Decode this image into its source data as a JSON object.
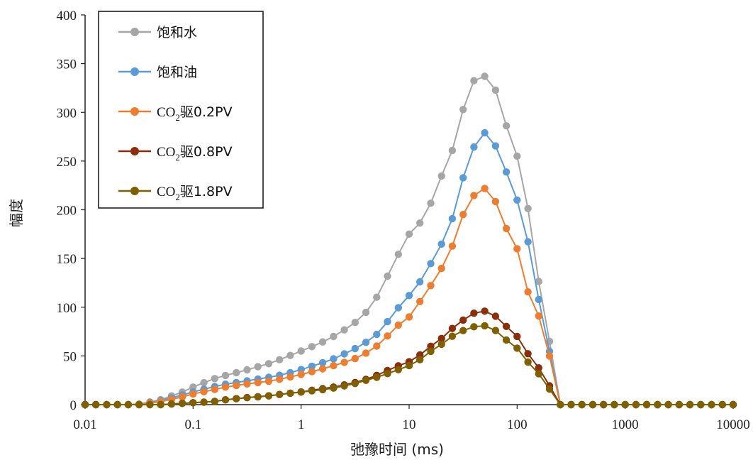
{
  "chart_data": {
    "type": "line",
    "xscale": "log",
    "xlim": [
      0.01,
      10000
    ],
    "ylim": [
      0,
      400
    ],
    "xlabel": "弛豫时间 (ms)",
    "ylabel": "幅度",
    "x_ticks": [
      "0.01",
      "0.1",
      "1",
      "10",
      "100",
      "1000",
      "10000"
    ],
    "y_ticks": [
      "0",
      "50",
      "100",
      "150",
      "200",
      "250",
      "300",
      "350",
      "400"
    ],
    "grid": false,
    "legend_position": "top-left",
    "points_per_decade": 10,
    "series": [
      {
        "name": "饱和水",
        "legend_main": "饱和水",
        "legend_sub": "",
        "legend_tail": "",
        "color": "#a6a6a6",
        "points": [
          [
            0.01,
            0
          ],
          [
            0.03,
            0
          ],
          [
            0.05,
            5
          ],
          [
            0.08,
            13
          ],
          [
            0.1,
            18
          ],
          [
            0.15,
            26
          ],
          [
            0.2,
            30
          ],
          [
            0.3,
            35
          ],
          [
            0.5,
            42
          ],
          [
            0.7,
            48
          ],
          [
            1,
            55
          ],
          [
            1.5,
            63
          ],
          [
            2,
            70
          ],
          [
            3,
            82
          ],
          [
            4,
            95
          ],
          [
            5,
            110
          ],
          [
            6,
            127
          ],
          [
            8,
            155
          ],
          [
            10,
            175
          ],
          [
            13,
            188
          ],
          [
            15,
            200
          ],
          [
            20,
            235
          ],
          [
            25,
            260
          ],
          [
            30,
            295
          ],
          [
            35,
            318
          ],
          [
            40,
            333
          ],
          [
            50,
            337
          ],
          [
            55,
            335
          ],
          [
            60,
            330
          ],
          [
            70,
            308
          ],
          [
            80,
            285
          ],
          [
            100,
            255
          ],
          [
            120,
            218
          ],
          [
            150,
            140
          ],
          [
            180,
            95
          ],
          [
            210,
            50
          ],
          [
            250,
            0
          ],
          [
            10000,
            0
          ]
        ]
      },
      {
        "name": "饱和油",
        "legend_main": "饱和油",
        "legend_sub": "",
        "legend_tail": "",
        "color": "#5b9bd5",
        "points": [
          [
            0.01,
            0
          ],
          [
            0.03,
            0
          ],
          [
            0.05,
            4
          ],
          [
            0.08,
            10
          ],
          [
            0.1,
            13
          ],
          [
            0.15,
            18
          ],
          [
            0.2,
            21
          ],
          [
            0.3,
            24
          ],
          [
            0.5,
            28
          ],
          [
            0.7,
            31
          ],
          [
            1,
            36
          ],
          [
            1.5,
            42
          ],
          [
            2,
            47
          ],
          [
            3,
            56
          ],
          [
            4,
            64
          ],
          [
            5,
            72
          ],
          [
            6,
            82
          ],
          [
            8,
            100
          ],
          [
            10,
            112
          ],
          [
            13,
            128
          ],
          [
            15,
            140
          ],
          [
            20,
            165
          ],
          [
            25,
            190
          ],
          [
            30,
            225
          ],
          [
            35,
            248
          ],
          [
            40,
            265
          ],
          [
            50,
            279
          ],
          [
            55,
            278
          ],
          [
            60,
            272
          ],
          [
            70,
            252
          ],
          [
            80,
            238
          ],
          [
            100,
            210
          ],
          [
            120,
            180
          ],
          [
            150,
            120
          ],
          [
            180,
            80
          ],
          [
            210,
            42
          ],
          [
            250,
            0
          ],
          [
            10000,
            0
          ]
        ]
      },
      {
        "name": "CO2驱0.2PV",
        "legend_main": "CO",
        "legend_sub": "2",
        "legend_tail": "驱0.2PV",
        "color": "#ed7d31",
        "points": [
          [
            0.01,
            0
          ],
          [
            0.03,
            0
          ],
          [
            0.05,
            3
          ],
          [
            0.08,
            8
          ],
          [
            0.1,
            11
          ],
          [
            0.15,
            15
          ],
          [
            0.2,
            18
          ],
          [
            0.3,
            21
          ],
          [
            0.5,
            24
          ],
          [
            0.7,
            27
          ],
          [
            1,
            31
          ],
          [
            1.5,
            36
          ],
          [
            2,
            40
          ],
          [
            3,
            46
          ],
          [
            4,
            53
          ],
          [
            5,
            60
          ],
          [
            6,
            68
          ],
          [
            8,
            82
          ],
          [
            10,
            90
          ],
          [
            13,
            108
          ],
          [
            15,
            118
          ],
          [
            20,
            140
          ],
          [
            25,
            162
          ],
          [
            30,
            190
          ],
          [
            35,
            205
          ],
          [
            40,
            215
          ],
          [
            50,
            222
          ],
          [
            55,
            220
          ],
          [
            60,
            215
          ],
          [
            70,
            195
          ],
          [
            80,
            180
          ],
          [
            100,
            160
          ],
          [
            120,
            120
          ],
          [
            150,
            100
          ],
          [
            180,
            70
          ],
          [
            210,
            40
          ],
          [
            250,
            0
          ],
          [
            10000,
            0
          ]
        ]
      },
      {
        "name": "CO2驱0.8PV",
        "legend_main": "CO",
        "legend_sub": "2",
        "legend_tail": "驱0.8PV",
        "color": "#8b2e0b",
        "points": [
          [
            0.01,
            0
          ],
          [
            0.05,
            0
          ],
          [
            0.1,
            2
          ],
          [
            0.15,
            3
          ],
          [
            0.2,
            5
          ],
          [
            0.3,
            7
          ],
          [
            0.5,
            9
          ],
          [
            0.7,
            11
          ],
          [
            1,
            13
          ],
          [
            1.5,
            16
          ],
          [
            2,
            18
          ],
          [
            3,
            22
          ],
          [
            4,
            26
          ],
          [
            5,
            30
          ],
          [
            6,
            34
          ],
          [
            8,
            40
          ],
          [
            10,
            44
          ],
          [
            13,
            52
          ],
          [
            15,
            58
          ],
          [
            20,
            68
          ],
          [
            25,
            78
          ],
          [
            30,
            85
          ],
          [
            35,
            90
          ],
          [
            40,
            94
          ],
          [
            50,
            96
          ],
          [
            55,
            95
          ],
          [
            60,
            93
          ],
          [
            70,
            86
          ],
          [
            80,
            80
          ],
          [
            100,
            70
          ],
          [
            120,
            55
          ],
          [
            150,
            42
          ],
          [
            180,
            28
          ],
          [
            210,
            15
          ],
          [
            250,
            0
          ],
          [
            10000,
            0
          ]
        ]
      },
      {
        "name": "CO2驱1.8PV",
        "legend_main": "CO",
        "legend_sub": "2",
        "legend_tail": "驱1.8PV",
        "color": "#7f6000",
        "points": [
          [
            0.01,
            0
          ],
          [
            0.05,
            0
          ],
          [
            0.1,
            2
          ],
          [
            0.15,
            3
          ],
          [
            0.2,
            5
          ],
          [
            0.3,
            7
          ],
          [
            0.5,
            9
          ],
          [
            0.7,
            11
          ],
          [
            1,
            13
          ],
          [
            1.5,
            15
          ],
          [
            2,
            17
          ],
          [
            3,
            21
          ],
          [
            4,
            25
          ],
          [
            5,
            28
          ],
          [
            6,
            31
          ],
          [
            8,
            36
          ],
          [
            10,
            40
          ],
          [
            13,
            47
          ],
          [
            15,
            53
          ],
          [
            20,
            62
          ],
          [
            25,
            70
          ],
          [
            30,
            75
          ],
          [
            35,
            78
          ],
          [
            40,
            80
          ],
          [
            50,
            81
          ],
          [
            55,
            80
          ],
          [
            60,
            78
          ],
          [
            70,
            72
          ],
          [
            80,
            66
          ],
          [
            100,
            58
          ],
          [
            120,
            46
          ],
          [
            150,
            35
          ],
          [
            180,
            24
          ],
          [
            210,
            12
          ],
          [
            250,
            0
          ],
          [
            10000,
            0
          ]
        ]
      }
    ]
  }
}
